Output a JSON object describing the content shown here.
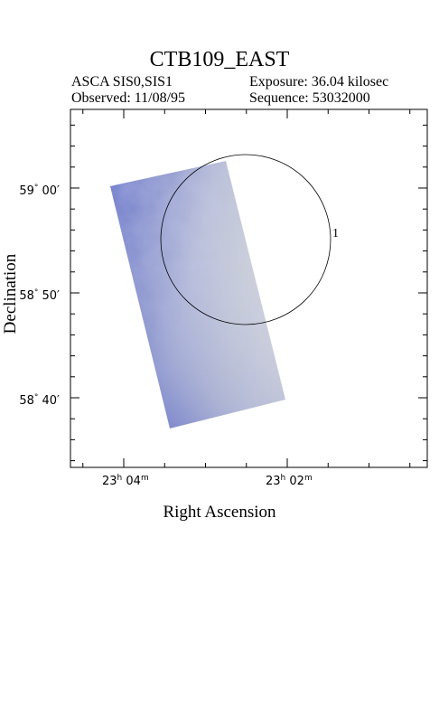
{
  "header": {
    "title": "CTB109_EAST",
    "instrument": "ASCA SIS0,SIS1",
    "exposure": "Exposure: 36.04 kilosec",
    "observed": "Observed: 11/08/95",
    "sequence": "Sequence: 53032000"
  },
  "axes": {
    "xlabel": "Right Ascension",
    "ylabel": "Declination",
    "xticks": [
      {
        "h": "23",
        "hu": "h",
        "m": "04",
        "mu": "m"
      },
      {
        "h": "23",
        "hu": "h",
        "m": "02",
        "mu": "m"
      }
    ],
    "yticks": [
      {
        "d": "59",
        "du": "°",
        "m": "00",
        "mu": "′"
      },
      {
        "d": "58",
        "du": "°",
        "m": "50",
        "mu": "′"
      },
      {
        "d": "58",
        "du": "°",
        "m": "40",
        "mu": "′"
      }
    ]
  },
  "region": {
    "label": "1"
  },
  "colors": {
    "image_blue": "#5d6cc4",
    "image_light": "#c9cdd6",
    "frame": "#000000"
  }
}
